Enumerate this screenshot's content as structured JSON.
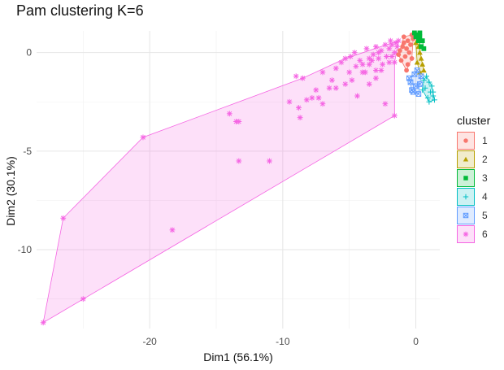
{
  "chart_data": {
    "type": "scatter",
    "title": "Pam clustering K=6",
    "xlabel": "Dim1 (56.1%)",
    "ylabel": "Dim2 (30.1%)",
    "xlim": [
      -28.5,
      1.8
    ],
    "ylim": [
      -14.0,
      1.1
    ],
    "x_ticks": [
      -20,
      -10,
      0
    ],
    "x_tick_labels": [
      "-20",
      "-10",
      "0"
    ],
    "y_ticks": [
      0,
      -5,
      -10
    ],
    "y_tick_labels": [
      "0",
      "-5",
      "-10"
    ],
    "grid": true,
    "legend_title": "cluster",
    "legend_position": "right",
    "series": [
      {
        "name": "1",
        "color": "#F8766D",
        "shape": "circle",
        "points": [
          [
            -1.2,
            0.1
          ],
          [
            -1.0,
            0.3
          ],
          [
            -0.9,
            0.5
          ],
          [
            -0.7,
            0.2
          ],
          [
            -0.8,
            -0.2
          ],
          [
            -0.6,
            0.6
          ],
          [
            -0.5,
            0.0
          ],
          [
            -0.4,
            0.4
          ],
          [
            -0.3,
            -0.3
          ],
          [
            -0.2,
            0.7
          ],
          [
            -1.1,
            -0.4
          ],
          [
            -0.6,
            -0.6
          ],
          [
            -0.9,
            0.8
          ],
          [
            -0.3,
            0.9
          ],
          [
            -1.3,
            -0.1
          ],
          [
            -0.7,
            -0.9
          ]
        ],
        "hull": [
          [
            -1.3,
            -0.1
          ],
          [
            -1.1,
            -0.4
          ],
          [
            -0.7,
            -0.9
          ],
          [
            -0.3,
            -0.3
          ],
          [
            -0.2,
            0.7
          ],
          [
            -0.3,
            0.9
          ],
          [
            -0.9,
            0.8
          ],
          [
            -1.2,
            0.1
          ]
        ]
      },
      {
        "name": "2",
        "color": "#B79F00",
        "shape": "triangle",
        "points": [
          [
            0.0,
            0.5
          ],
          [
            0.2,
            0.3
          ],
          [
            0.3,
            0.0
          ],
          [
            0.4,
            -0.3
          ],
          [
            0.1,
            -0.5
          ],
          [
            0.5,
            -0.6
          ],
          [
            0.2,
            0.8
          ],
          [
            0.6,
            -0.9
          ],
          [
            0.3,
            -1.0
          ]
        ],
        "hull": [
          [
            0.2,
            0.8
          ],
          [
            0.0,
            0.5
          ],
          [
            0.1,
            -0.5
          ],
          [
            0.3,
            -1.0
          ],
          [
            0.6,
            -0.9
          ],
          [
            0.5,
            -0.6
          ],
          [
            0.4,
            -0.3
          ]
        ]
      },
      {
        "name": "3",
        "color": "#00BA38",
        "shape": "square",
        "points": [
          [
            -0.1,
            1.0
          ],
          [
            0.1,
            0.9
          ],
          [
            0.3,
            1.0
          ],
          [
            0.5,
            0.6
          ],
          [
            0.2,
            0.6
          ],
          [
            0.6,
            0.2
          ],
          [
            0.4,
            0.3
          ],
          [
            0.3,
            0.8
          ],
          [
            0.0,
            0.8
          ]
        ],
        "hull": [
          [
            -0.1,
            1.0
          ],
          [
            0.3,
            1.0
          ],
          [
            0.5,
            0.6
          ],
          [
            0.6,
            0.2
          ],
          [
            0.4,
            0.3
          ],
          [
            0.0,
            0.8
          ]
        ]
      },
      {
        "name": "4",
        "color": "#00BFC4",
        "shape": "plus",
        "points": [
          [
            0.8,
            -1.2
          ],
          [
            1.0,
            -1.5
          ],
          [
            0.7,
            -1.8
          ],
          [
            1.1,
            -2.0
          ],
          [
            1.3,
            -2.2
          ],
          [
            1.4,
            -2.4
          ],
          [
            0.9,
            -2.3
          ],
          [
            1.2,
            -1.7
          ],
          [
            0.6,
            -1.4
          ],
          [
            1.0,
            -2.5
          ],
          [
            0.5,
            -1.9
          ],
          [
            1.3,
            -2.0
          ]
        ],
        "hull": [
          [
            0.6,
            -1.4
          ],
          [
            0.8,
            -1.2
          ],
          [
            1.2,
            -1.7
          ],
          [
            1.4,
            -2.4
          ],
          [
            1.0,
            -2.5
          ],
          [
            0.5,
            -1.9
          ]
        ]
      },
      {
        "name": "5",
        "color": "#619CFF",
        "shape": "boxx",
        "points": [
          [
            -0.2,
            -2.0
          ],
          [
            0.0,
            -1.7
          ],
          [
            -0.5,
            -1.3
          ],
          [
            -0.4,
            -1.5
          ],
          [
            -0.1,
            -1.1
          ],
          [
            0.3,
            -1.6
          ],
          [
            0.2,
            -2.1
          ],
          [
            -0.3,
            -1.9
          ],
          [
            0.1,
            -0.9
          ],
          [
            0.4,
            -1.2
          ]
        ],
        "hull": [
          [
            -0.5,
            -1.3
          ],
          [
            -0.1,
            -1.1
          ],
          [
            0.1,
            -0.9
          ],
          [
            0.4,
            -1.2
          ],
          [
            0.3,
            -1.6
          ],
          [
            0.2,
            -2.1
          ],
          [
            -0.2,
            -2.0
          ],
          [
            -0.3,
            -1.9
          ]
        ]
      },
      {
        "name": "6",
        "color": "#F564E3",
        "shape": "asterisk",
        "points": [
          [
            -28.0,
            -13.7
          ],
          [
            -25.0,
            -12.5
          ],
          [
            -26.5,
            -8.4
          ],
          [
            -20.5,
            -4.3
          ],
          [
            -18.3,
            -9.0
          ],
          [
            -14.0,
            -3.1
          ],
          [
            -13.5,
            -3.5
          ],
          [
            -13.3,
            -3.5
          ],
          [
            -13.3,
            -5.5
          ],
          [
            -11.0,
            -5.5
          ],
          [
            -9.5,
            -2.5
          ],
          [
            -8.8,
            -2.8
          ],
          [
            -8.7,
            -3.3
          ],
          [
            -8.5,
            -1.3
          ],
          [
            -8.2,
            -2.4
          ],
          [
            -7.8,
            -2.3
          ],
          [
            -7.5,
            -1.9
          ],
          [
            -7.3,
            -2.3
          ],
          [
            -7.0,
            -2.6
          ],
          [
            -6.5,
            -1.8
          ],
          [
            -6.3,
            -1.4
          ],
          [
            -6.0,
            -1.8
          ],
          [
            -5.3,
            -1.6
          ],
          [
            -4.8,
            -1.4
          ],
          [
            -4.4,
            -2.2
          ],
          [
            -3.5,
            -1.6
          ],
          [
            -2.3,
            -2.6
          ],
          [
            -1.6,
            -3.2
          ],
          [
            -9.0,
            -1.2
          ],
          [
            -7.0,
            -1.0
          ],
          [
            -6.0,
            -0.8
          ],
          [
            -5.0,
            -1.0
          ],
          [
            -4.5,
            -0.7
          ],
          [
            -4.0,
            -0.6
          ],
          [
            -3.8,
            -1.0
          ],
          [
            -3.3,
            -0.4
          ],
          [
            -3.0,
            -0.9
          ],
          [
            -2.8,
            -0.3
          ],
          [
            -2.5,
            -0.6
          ],
          [
            -2.2,
            -0.2
          ],
          [
            -2.0,
            0.2
          ],
          [
            -1.8,
            0.4
          ],
          [
            -1.6,
            0.0
          ],
          [
            -1.5,
            0.5
          ],
          [
            -1.4,
            0.3
          ],
          [
            -1.3,
            0.6
          ],
          [
            -2.6,
            0.1
          ],
          [
            -3.2,
            -0.1
          ],
          [
            -3.5,
            -0.3
          ],
          [
            -4.2,
            -0.4
          ],
          [
            -4.6,
            0.0
          ],
          [
            -5.3,
            -0.3
          ],
          [
            -3.0,
            0.3
          ],
          [
            -2.3,
            0.4
          ],
          [
            -1.9,
            0.6
          ],
          [
            -3.7,
            0.2
          ],
          [
            -4.9,
            -0.2
          ],
          [
            -5.6,
            -0.5
          ],
          [
            -3.0,
            -1.3
          ],
          [
            -4.0,
            -1.0
          ],
          [
            -2.0,
            -0.5
          ],
          [
            -1.6,
            -0.5
          ],
          [
            -2.6,
            -0.9
          ],
          [
            -3.5,
            -0.6
          ],
          [
            -1.8,
            -0.2
          ],
          [
            -2.8,
            0.0
          ]
        ],
        "hull": [
          [
            -28.0,
            -13.7
          ],
          [
            -26.5,
            -8.4
          ],
          [
            -20.5,
            -4.3
          ],
          [
            -8.5,
            -1.3
          ],
          [
            -5.3,
            -0.3
          ],
          [
            -1.3,
            0.6
          ],
          [
            -1.6,
            -0.5
          ],
          [
            -1.6,
            -3.2
          ]
        ]
      }
    ]
  }
}
